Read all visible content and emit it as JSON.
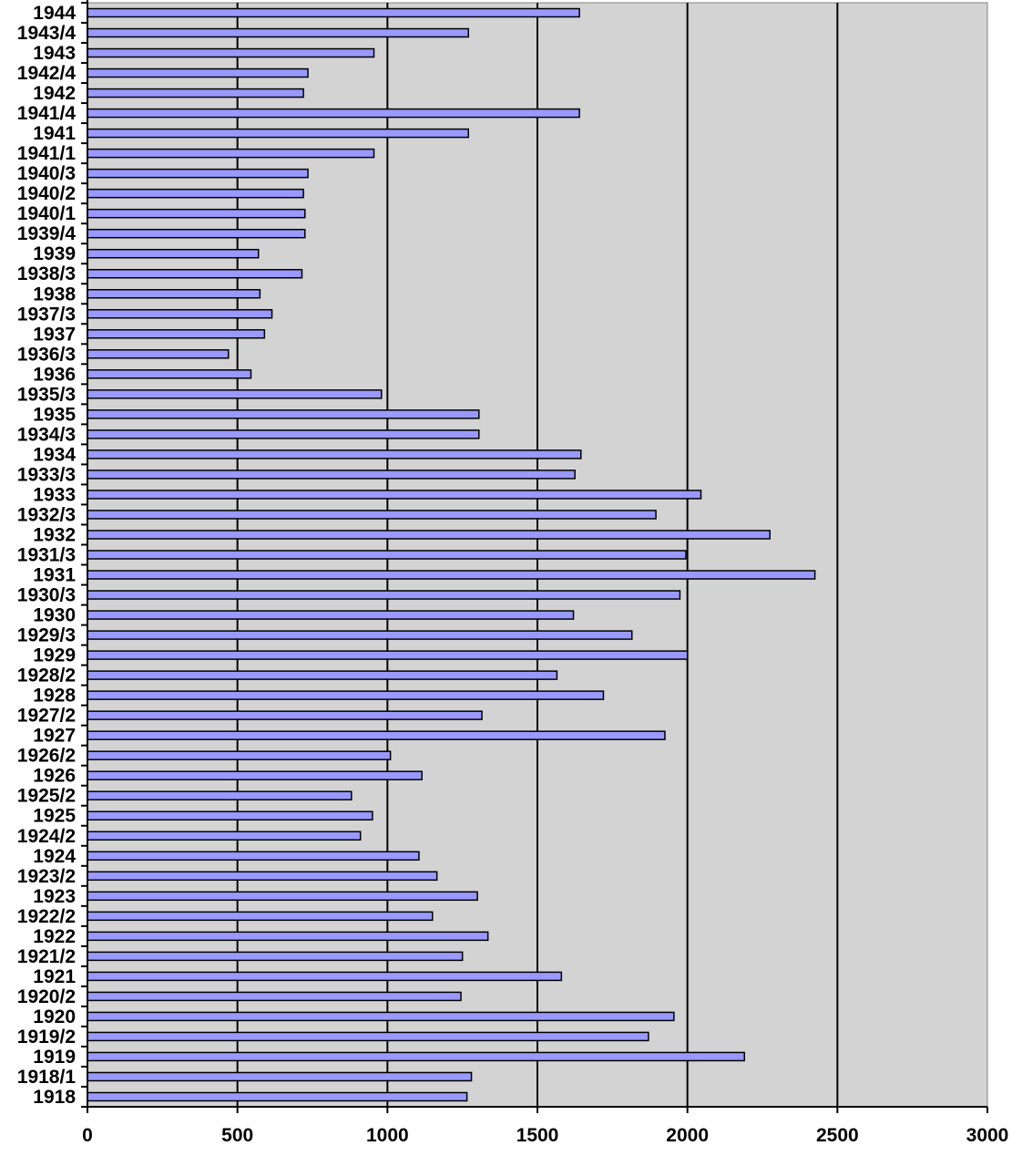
{
  "chart_data": {
    "type": "bar",
    "orientation": "horizontal",
    "title": "",
    "xlabel": "",
    "ylabel": "",
    "xlim": [
      0,
      3000
    ],
    "x_ticks": [
      "0",
      "500",
      "1000",
      "1500",
      "2000",
      "2500",
      "3000"
    ],
    "grid": "vertical major gridlines",
    "legend": "none",
    "colors": {
      "plot_background": "#d3d3d3",
      "bar_fill": "#9999ff",
      "bar_stroke": "#000000",
      "gridline": "#000000"
    },
    "categories": [
      "1944",
      "1943/4",
      "1943",
      "1942/4",
      "1942",
      "1941/4",
      "1941",
      "1941/1",
      "1940/3",
      "1940/2",
      "1940/1",
      "1939/4",
      "1939",
      "1938/3",
      "1938",
      "1937/3",
      "1937",
      "1936/3",
      "1936",
      "1935/3",
      "1935",
      "1934/3",
      "1934",
      "1933/3",
      "1933",
      "1932/3",
      "1932",
      "1931/3",
      "1931",
      "1930/3",
      "1930",
      "1929/3",
      "1929",
      "1928/2",
      "1928",
      "1927/2",
      "1927",
      "1926/2",
      "1926",
      "1925/2",
      "1925",
      "1924/2",
      "1924",
      "1923/2",
      "1923",
      "1922/2",
      "1922",
      "1921/2",
      "1921",
      "1920/2",
      "1920",
      "1919/2",
      "1919",
      "1918/1",
      "1918"
    ],
    "values": [
      1640,
      1270,
      955,
      735,
      720,
      1640,
      1270,
      955,
      735,
      720,
      725,
      725,
      570,
      715,
      575,
      615,
      590,
      470,
      545,
      980,
      1305,
      1305,
      1645,
      1625,
      2045,
      1895,
      2275,
      1995,
      2425,
      1975,
      1620,
      1815,
      2000,
      1565,
      1720,
      1315,
      1925,
      1010,
      1115,
      880,
      950,
      910,
      1105,
      1165,
      1300,
      1150,
      1335,
      1250,
      1580,
      1245,
      1955,
      1870,
      2190,
      1280,
      1265
    ]
  }
}
